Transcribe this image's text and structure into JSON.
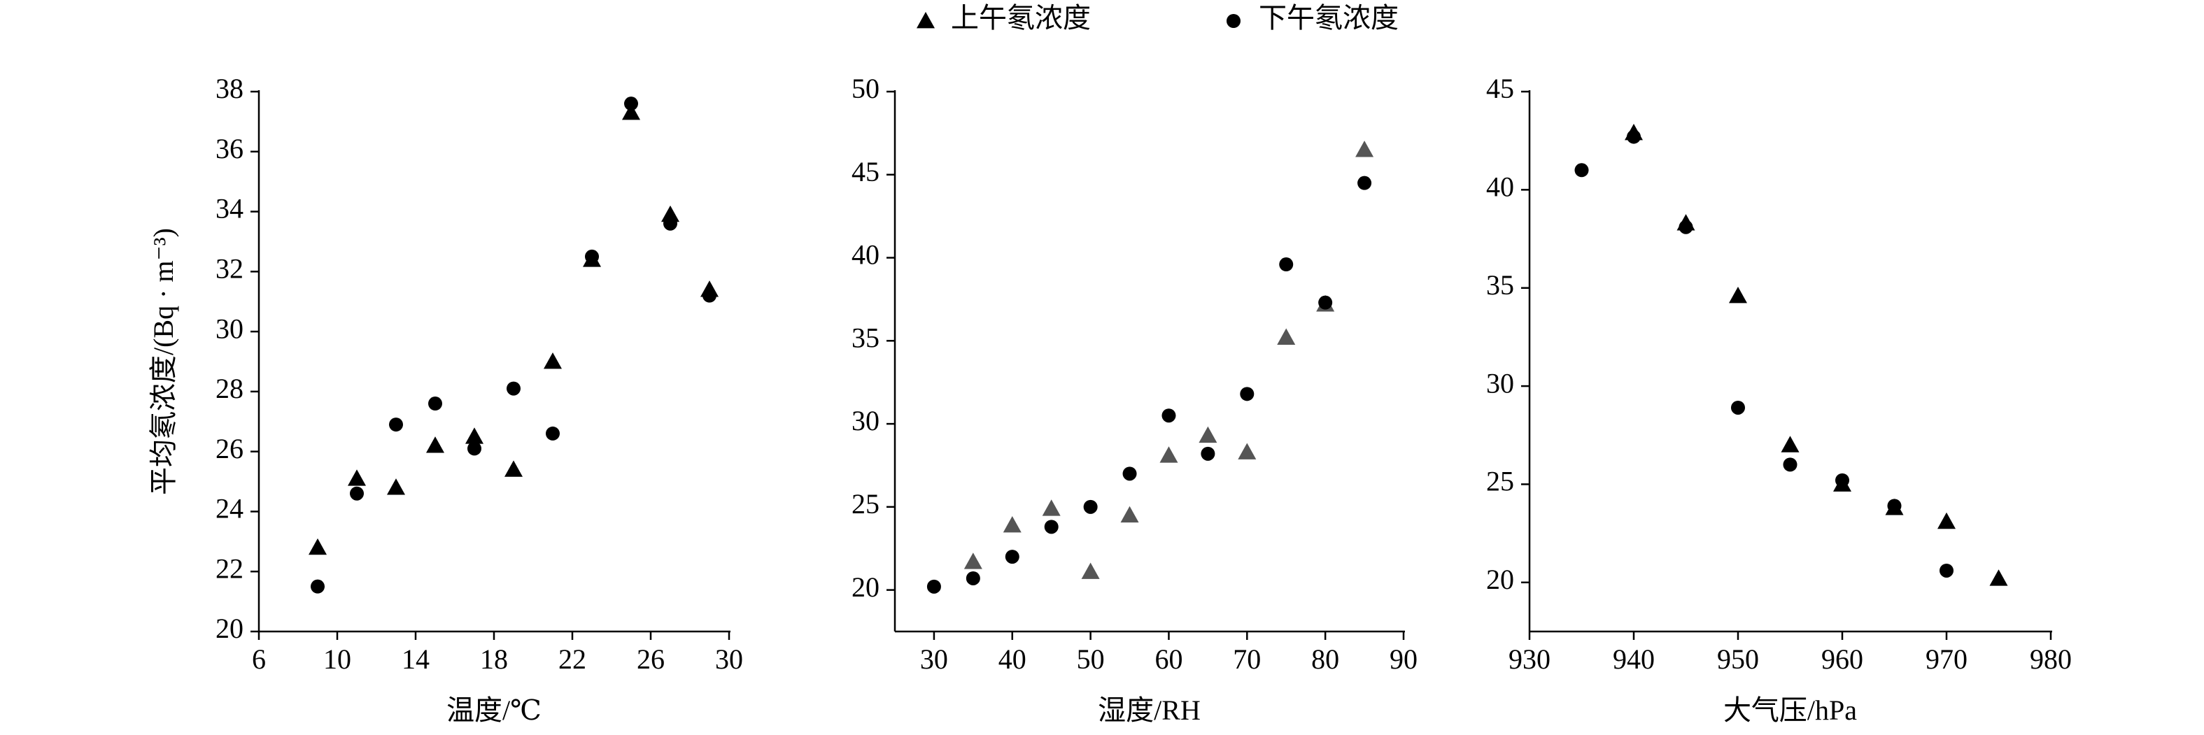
{
  "chart_data": [
    {
      "type": "scatter",
      "xlabel": "温度/℃",
      "ylabel": "平均氡浓度/(Bq · m⁻³)",
      "x": [
        9,
        11,
        13,
        15,
        17,
        19,
        21,
        23,
        25,
        27,
        29
      ],
      "series": [
        {
          "name": "上午氡浓度",
          "marker": "triangle",
          "color": "#000000",
          "values": [
            22.8,
            25.1,
            24.8,
            26.2,
            26.5,
            25.4,
            29.0,
            32.4,
            37.3,
            33.9,
            31.4
          ]
        },
        {
          "name": "下午氡浓度",
          "marker": "circle",
          "color": "#000000",
          "values": [
            21.5,
            24.6,
            26.9,
            27.6,
            26.1,
            28.1,
            26.6,
            32.5,
            37.6,
            33.6,
            31.2
          ]
        }
      ],
      "xlim": [
        6,
        30
      ],
      "xticks": [
        6,
        10,
        14,
        18,
        22,
        26,
        30
      ],
      "ylim": [
        20,
        38
      ],
      "yticks": [
        20,
        22,
        24,
        26,
        28,
        30,
        32,
        34,
        36,
        38
      ]
    },
    {
      "type": "scatter",
      "xlabel": "湿度/RH",
      "x": [
        30,
        35,
        40,
        45,
        50,
        55,
        60,
        65,
        70,
        75,
        80,
        85
      ],
      "series": [
        {
          "marker": "triangle",
          "color": "#555555",
          "values": [
            null,
            21.7,
            23.9,
            24.9,
            21.1,
            24.5,
            28.1,
            29.3,
            28.3,
            35.2,
            37.2,
            46.5
          ]
        },
        {
          "marker": "circle",
          "color": "#000000",
          "values": [
            20.2,
            20.7,
            22.0,
            23.8,
            25.0,
            27.0,
            30.5,
            28.2,
            31.8,
            39.6,
            37.3,
            44.5
          ]
        }
      ],
      "xlim": [
        25,
        90
      ],
      "xticks": [
        30,
        40,
        50,
        60,
        70,
        80,
        90
      ],
      "ylim": [
        17.5,
        50
      ],
      "yticks": [
        20,
        25,
        30,
        35,
        40,
        45,
        50
      ]
    },
    {
      "type": "scatter",
      "xlabel": "大气压/hPa",
      "x": [
        935,
        940,
        945,
        950,
        955,
        960,
        965,
        970,
        975
      ],
      "series": [
        {
          "marker": "triangle",
          "color": "#000000",
          "values": [
            null,
            42.9,
            38.3,
            34.6,
            27.0,
            25.0,
            23.8,
            23.1,
            20.2
          ]
        },
        {
          "marker": "circle",
          "color": "#000000",
          "values": [
            41.0,
            42.7,
            38.1,
            28.9,
            26.0,
            25.2,
            23.9,
            20.6,
            null
          ]
        }
      ],
      "xlim": [
        930,
        980
      ],
      "xticks": [
        930,
        940,
        950,
        960,
        970,
        980
      ],
      "ylim": [
        17.5,
        45
      ],
      "yticks": [
        20,
        25,
        30,
        35,
        40,
        45
      ]
    }
  ]
}
